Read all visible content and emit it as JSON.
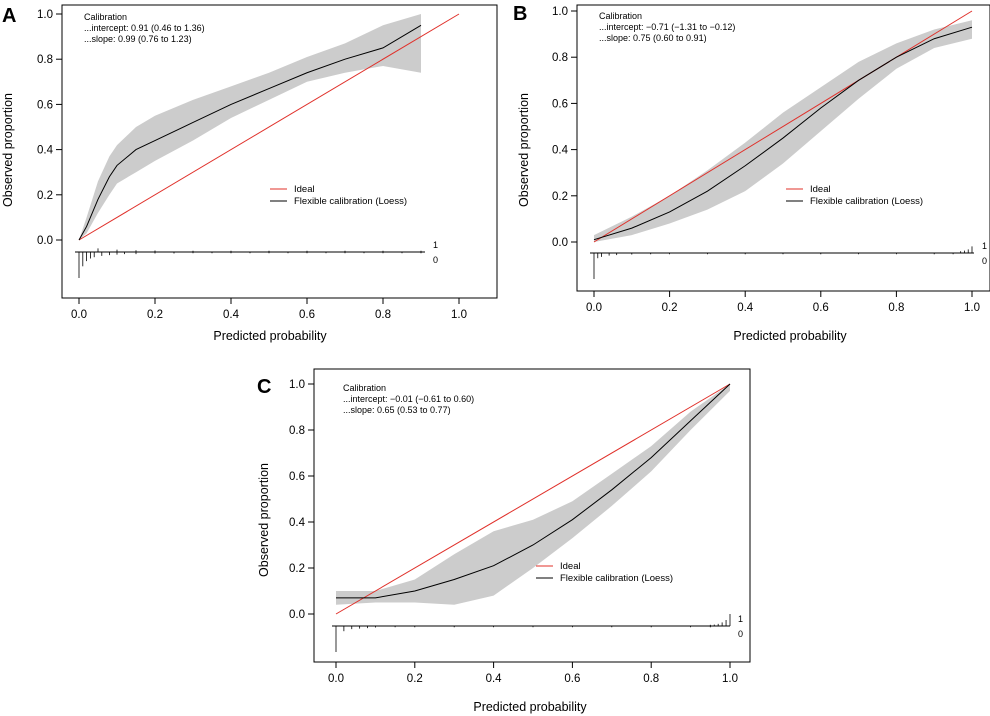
{
  "figure": {
    "panels": [
      "A",
      "B",
      "C"
    ]
  },
  "colors": {
    "ideal": "#e0302a",
    "loess": "#000000",
    "band": "#cccccc"
  },
  "chart_data": [
    {
      "type": "line",
      "panel": "A",
      "xlabel": "Predicted probability",
      "ylabel": "Observed proportion",
      "xlim": [
        0.0,
        1.0
      ],
      "ylim": [
        0.0,
        1.0
      ],
      "xticks": [
        "0.0",
        "0.2",
        "0.4",
        "0.6",
        "0.8",
        "1.0"
      ],
      "yticks": [
        "0.0",
        "0.2",
        "0.4",
        "0.6",
        "0.8",
        "1.0"
      ],
      "annotation": [
        "Calibration",
        "...intercept: 0.91 (0.46 to 1.36)",
        "...slope: 0.99 (0.76 to 1.23)"
      ],
      "legend": {
        "position": "center-right",
        "entries": [
          "Ideal",
          "Flexible calibration (Loess)"
        ]
      },
      "rug_labels": [
        "1",
        "0"
      ],
      "series": [
        {
          "name": "Ideal",
          "x": [
            0.0,
            1.0
          ],
          "y": [
            0.0,
            1.0
          ]
        },
        {
          "name": "Flexible calibration (Loess)",
          "x": [
            0.0,
            0.02,
            0.05,
            0.08,
            0.1,
            0.15,
            0.2,
            0.3,
            0.4,
            0.5,
            0.6,
            0.7,
            0.8,
            0.9
          ],
          "y": [
            0.0,
            0.06,
            0.18,
            0.28,
            0.33,
            0.4,
            0.44,
            0.52,
            0.6,
            0.67,
            0.74,
            0.8,
            0.85,
            0.95
          ],
          "lower": [
            0.0,
            0.03,
            0.12,
            0.2,
            0.25,
            0.3,
            0.35,
            0.44,
            0.54,
            0.62,
            0.7,
            0.74,
            0.77,
            0.74
          ],
          "upper": [
            0.0,
            0.1,
            0.26,
            0.37,
            0.42,
            0.5,
            0.55,
            0.62,
            0.68,
            0.74,
            0.81,
            0.87,
            0.95,
            1.0
          ]
        }
      ],
      "rug_events": [
        {
          "x": 0.05,
          "h": 0.3
        },
        {
          "x": 0.1,
          "h": 0.2
        },
        {
          "x": 0.15,
          "h": 0.15
        },
        {
          "x": 0.2,
          "h": 0.12
        },
        {
          "x": 0.3,
          "h": 0.1
        },
        {
          "x": 0.4,
          "h": 0.1
        },
        {
          "x": 0.5,
          "h": 0.1
        },
        {
          "x": 0.6,
          "h": 0.1
        },
        {
          "x": 0.7,
          "h": 0.1
        },
        {
          "x": 0.8,
          "h": 0.1
        },
        {
          "x": 0.9,
          "h": 0.1
        }
      ],
      "rug_nonevents": [
        {
          "x": 0.0,
          "h": 1.0
        },
        {
          "x": 0.01,
          "h": 0.55
        },
        {
          "x": 0.02,
          "h": 0.35
        },
        {
          "x": 0.03,
          "h": 0.25
        },
        {
          "x": 0.04,
          "h": 0.2
        },
        {
          "x": 0.06,
          "h": 0.15
        },
        {
          "x": 0.08,
          "h": 0.12
        },
        {
          "x": 0.1,
          "h": 0.1
        },
        {
          "x": 0.12,
          "h": 0.08
        },
        {
          "x": 0.15,
          "h": 0.08
        },
        {
          "x": 0.2,
          "h": 0.06
        },
        {
          "x": 0.25,
          "h": 0.06
        },
        {
          "x": 0.3,
          "h": 0.05
        },
        {
          "x": 0.35,
          "h": 0.05
        },
        {
          "x": 0.4,
          "h": 0.05
        },
        {
          "x": 0.45,
          "h": 0.05
        },
        {
          "x": 0.5,
          "h": 0.05
        },
        {
          "x": 0.55,
          "h": 0.05
        },
        {
          "x": 0.6,
          "h": 0.05
        },
        {
          "x": 0.65,
          "h": 0.05
        },
        {
          "x": 0.7,
          "h": 0.05
        },
        {
          "x": 0.75,
          "h": 0.05
        },
        {
          "x": 0.8,
          "h": 0.05
        },
        {
          "x": 0.85,
          "h": 0.05
        },
        {
          "x": 0.9,
          "h": 0.05
        }
      ]
    },
    {
      "type": "line",
      "panel": "B",
      "xlabel": "Predicted probability",
      "ylabel": "Observed proportion",
      "xlim": [
        0.0,
        1.0
      ],
      "ylim": [
        0.0,
        1.0
      ],
      "xticks": [
        "0.0",
        "0.2",
        "0.4",
        "0.6",
        "0.8",
        "1.0"
      ],
      "yticks": [
        "0.0",
        "0.2",
        "0.4",
        "0.6",
        "0.8",
        "1.0"
      ],
      "annotation": [
        "Calibration",
        "...intercept: −0.71 (−1.31 to −0.12)",
        "...slope: 0.75 (0.60 to 0.91)"
      ],
      "legend": {
        "position": "center-right",
        "entries": [
          "Ideal",
          "Flexible calibration (Loess)"
        ]
      },
      "rug_labels": [
        "1",
        "0"
      ],
      "series": [
        {
          "name": "Ideal",
          "x": [
            0.0,
            1.0
          ],
          "y": [
            0.0,
            1.0
          ]
        },
        {
          "name": "Flexible calibration (Loess)",
          "x": [
            0.0,
            0.1,
            0.2,
            0.3,
            0.4,
            0.5,
            0.6,
            0.7,
            0.8,
            0.9,
            1.0
          ],
          "y": [
            0.01,
            0.06,
            0.13,
            0.22,
            0.33,
            0.45,
            0.58,
            0.7,
            0.8,
            0.88,
            0.93
          ],
          "lower": [
            0.0,
            0.03,
            0.08,
            0.14,
            0.22,
            0.34,
            0.48,
            0.62,
            0.75,
            0.84,
            0.88
          ],
          "upper": [
            0.03,
            0.11,
            0.2,
            0.31,
            0.43,
            0.56,
            0.67,
            0.78,
            0.86,
            0.92,
            0.96
          ]
        }
      ],
      "rug_events": [
        {
          "x": 0.97,
          "h": 0.15
        },
        {
          "x": 0.98,
          "h": 0.2
        },
        {
          "x": 0.99,
          "h": 0.3
        },
        {
          "x": 1.0,
          "h": 0.55
        }
      ],
      "rug_nonevents": [
        {
          "x": 0.0,
          "h": 1.0
        },
        {
          "x": 0.01,
          "h": 0.2
        },
        {
          "x": 0.02,
          "h": 0.15
        },
        {
          "x": 0.04,
          "h": 0.1
        },
        {
          "x": 0.06,
          "h": 0.08
        },
        {
          "x": 0.1,
          "h": 0.06
        },
        {
          "x": 0.15,
          "h": 0.05
        },
        {
          "x": 0.2,
          "h": 0.05
        },
        {
          "x": 0.3,
          "h": 0.05
        },
        {
          "x": 0.4,
          "h": 0.05
        },
        {
          "x": 0.5,
          "h": 0.05
        },
        {
          "x": 0.6,
          "h": 0.05
        },
        {
          "x": 0.7,
          "h": 0.05
        },
        {
          "x": 0.8,
          "h": 0.05
        },
        {
          "x": 0.9,
          "h": 0.05
        },
        {
          "x": 0.95,
          "h": 0.05
        }
      ]
    },
    {
      "type": "line",
      "panel": "C",
      "xlabel": "Predicted probability",
      "ylabel": "Observed proportion",
      "xlim": [
        0.0,
        1.0
      ],
      "ylim": [
        0.0,
        1.0
      ],
      "xticks": [
        "0.0",
        "0.2",
        "0.4",
        "0.6",
        "0.8",
        "1.0"
      ],
      "yticks": [
        "0.0",
        "0.2",
        "0.4",
        "0.6",
        "0.8",
        "1.0"
      ],
      "annotation": [
        "Calibration",
        "...intercept: −0.01 (−0.61 to 0.60)",
        "...slope: 0.65 (0.53 to 0.77)"
      ],
      "legend": {
        "position": "center-right",
        "entries": [
          "Ideal",
          "Flexible calibration (Loess)"
        ]
      },
      "rug_labels": [
        "1",
        "0"
      ],
      "series": [
        {
          "name": "Ideal",
          "x": [
            0.0,
            1.0
          ],
          "y": [
            0.0,
            1.0
          ]
        },
        {
          "name": "Flexible calibration (Loess)",
          "x": [
            0.0,
            0.1,
            0.2,
            0.3,
            0.4,
            0.5,
            0.6,
            0.7,
            0.8,
            0.9,
            1.0
          ],
          "y": [
            0.07,
            0.07,
            0.1,
            0.15,
            0.21,
            0.3,
            0.41,
            0.54,
            0.68,
            0.84,
            1.0
          ],
          "lower": [
            0.04,
            0.05,
            0.05,
            0.04,
            0.08,
            0.2,
            0.33,
            0.47,
            0.62,
            0.8,
            0.97
          ],
          "upper": [
            0.1,
            0.1,
            0.15,
            0.26,
            0.36,
            0.41,
            0.49,
            0.61,
            0.73,
            0.88,
            1.0
          ]
        }
      ],
      "rug_events": [
        {
          "x": 0.95,
          "h": 0.1
        },
        {
          "x": 0.96,
          "h": 0.12
        },
        {
          "x": 0.97,
          "h": 0.18
        },
        {
          "x": 0.98,
          "h": 0.3
        },
        {
          "x": 0.99,
          "h": 0.5
        },
        {
          "x": 1.0,
          "h": 1.0
        }
      ],
      "rug_nonevents": [
        {
          "x": 0.0,
          "h": 1.0
        },
        {
          "x": 0.02,
          "h": 0.2
        },
        {
          "x": 0.04,
          "h": 0.12
        },
        {
          "x": 0.06,
          "h": 0.1
        },
        {
          "x": 0.08,
          "h": 0.08
        },
        {
          "x": 0.1,
          "h": 0.06
        },
        {
          "x": 0.15,
          "h": 0.05
        },
        {
          "x": 0.2,
          "h": 0.05
        },
        {
          "x": 0.3,
          "h": 0.05
        },
        {
          "x": 0.4,
          "h": 0.05
        },
        {
          "x": 0.5,
          "h": 0.05
        },
        {
          "x": 0.6,
          "h": 0.05
        },
        {
          "x": 0.7,
          "h": 0.05
        },
        {
          "x": 0.8,
          "h": 0.05
        },
        {
          "x": 0.9,
          "h": 0.05
        },
        {
          "x": 0.95,
          "h": 0.05
        }
      ]
    }
  ]
}
